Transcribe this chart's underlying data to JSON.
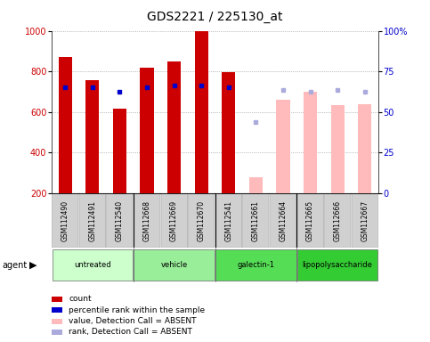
{
  "title": "GDS2221 / 225130_at",
  "samples": [
    "GSM112490",
    "GSM112491",
    "GSM112540",
    "GSM112668",
    "GSM112669",
    "GSM112670",
    "GSM112541",
    "GSM112661",
    "GSM112664",
    "GSM112665",
    "GSM112666",
    "GSM112667"
  ],
  "groups": [
    {
      "name": "untreated",
      "color": "#ccffcc",
      "samples": [
        0,
        1,
        2
      ]
    },
    {
      "name": "vehicle",
      "color": "#99ee99",
      "samples": [
        3,
        4,
        5
      ]
    },
    {
      "name": "galectin-1",
      "color": "#55dd55",
      "samples": [
        6,
        7,
        8
      ]
    },
    {
      "name": "lipopolysaccharide",
      "color": "#33cc33",
      "samples": [
        9,
        10,
        11
      ]
    }
  ],
  "count_values": [
    870,
    755,
    618,
    820,
    848,
    1000,
    795,
    280,
    660,
    700,
    633,
    640
  ],
  "rank_values": [
    720,
    720,
    700,
    720,
    730,
    730,
    720,
    550,
    710,
    700,
    710,
    700
  ],
  "absent_mask": [
    false,
    false,
    false,
    false,
    false,
    false,
    false,
    true,
    true,
    true,
    true,
    true
  ],
  "ylim_left": [
    200,
    1000
  ],
  "ylim_right": [
    0,
    100
  ],
  "count_color": "#cc0000",
  "rank_color": "#0000cc",
  "absent_count_color": "#ffbbbb",
  "absent_rank_color": "#aaaadd",
  "grid_color": "#888888",
  "title_fontsize": 10,
  "tick_fontsize": 7,
  "legend_items": [
    {
      "label": "count",
      "color": "#cc0000"
    },
    {
      "label": "percentile rank within the sample",
      "color": "#0000cc"
    },
    {
      "label": "value, Detection Call = ABSENT",
      "color": "#ffbbbb"
    },
    {
      "label": "rank, Detection Call = ABSENT",
      "color": "#aaaadd"
    }
  ]
}
